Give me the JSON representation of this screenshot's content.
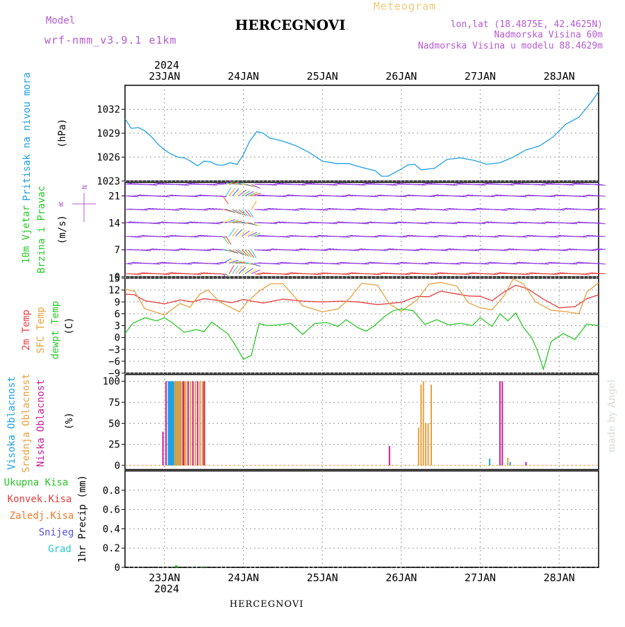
{
  "header": {
    "model_label": "Model",
    "model_name": "wrf-nmm_v3.9.1 e1km",
    "title": "HERCEGNOVI",
    "meteogram_label": "Meteogram",
    "lonlat": "lon,lat (18.4875E, 42.4625N)",
    "elevation": "Nadmorska Visina 60m",
    "model_elevation": "Nadmorska Visina u modelu 88.4629m"
  },
  "footer": {
    "station": "HERCEGNOVI",
    "watermark": "made by Angel"
  },
  "time_axis": {
    "year": "2024",
    "labels": [
      "23JAN",
      "24JAN",
      "25JAN",
      "26JAN",
      "27JAN",
      "28JAN"
    ],
    "start_day": 22.5,
    "end_day": 28.5
  },
  "colors": {
    "pressure": "#1ea0e6",
    "temp2m": "#e63c3c",
    "sfc_temp": "#e6a03c",
    "dewpt": "#28c828",
    "wind": "#8a2be2",
    "high_cloud": "#1ea0e6",
    "mid_cloud": "#e6a03c",
    "low_cloud": "#c81e96"
  },
  "chart_data": [
    {
      "type": "line",
      "name": "pressure",
      "ylabel_1": "Pritisak na nivou mora",
      "ylabel_2": "(hPa)",
      "ylim": [
        1023,
        1035
      ],
      "yticks": [
        "1023",
        "1026",
        "1029",
        "1032"
      ],
      "x": [
        22.5,
        22.58,
        22.67,
        22.75,
        22.83,
        22.92,
        23.0,
        23.08,
        23.17,
        23.25,
        23.33,
        23.42,
        23.5,
        23.58,
        23.67,
        23.75,
        23.83,
        23.92,
        24.0,
        24.08,
        24.17,
        24.25,
        24.33,
        24.5,
        24.67,
        24.83,
        25.0,
        25.17,
        25.33,
        25.5,
        25.67,
        25.75,
        25.83,
        26.0,
        26.08,
        26.17,
        26.25,
        26.42,
        26.58,
        26.75,
        26.92,
        27.08,
        27.25,
        27.42,
        27.58,
        27.75,
        27.92,
        28.08,
        28.25,
        28.4,
        28.5
      ],
      "y": [
        1030.8,
        1029.6,
        1029.7,
        1029.3,
        1028.6,
        1027.6,
        1026.9,
        1026.4,
        1026.0,
        1025.9,
        1025.5,
        1024.9,
        1025.5,
        1025.4,
        1025.0,
        1025.0,
        1025.3,
        1025.1,
        1026.3,
        1028.0,
        1029.2,
        1029.0,
        1028.4,
        1028.0,
        1027.4,
        1026.6,
        1025.5,
        1025.2,
        1025.2,
        1024.7,
        1024.3,
        1023.6,
        1023.6,
        1024.5,
        1025.0,
        1025.1,
        1024.4,
        1024.6,
        1025.7,
        1025.9,
        1025.6,
        1025.1,
        1025.3,
        1026.0,
        1026.9,
        1027.4,
        1028.5,
        1030.1,
        1031.0,
        1032.8,
        1034.2
      ]
    },
    {
      "type": "line",
      "name": "wind",
      "ylabel_1": "10m Vjetar",
      "ylabel_2": "Brzina i Pravac",
      "ylabel_3": "(m/s)",
      "ylim": [
        0,
        24.5
      ],
      "yticks": [
        "0",
        "7",
        "14",
        "21"
      ],
      "legend": "N",
      "legend_w": "W",
      "barb_levels": [
        0.8,
        3.5,
        7,
        10.5,
        14,
        17.5,
        21,
        24
      ]
    },
    {
      "type": "line",
      "name": "temperature",
      "ylabel_1": "2m Temp",
      "ylabel_2": "SFC Temp",
      "ylabel_3": "dewpt Temp",
      "ylabel_4": "(C)",
      "ylim": [
        -9,
        15
      ],
      "yticks": [
        "-9",
        "-6",
        "-3",
        "0",
        "3",
        "6",
        "9",
        "12",
        "15"
      ],
      "series": [
        {
          "name": "2m Temp",
          "x": [
            22.5,
            22.62,
            22.75,
            23.0,
            23.2,
            23.35,
            23.5,
            23.7,
            23.85,
            24.0,
            24.25,
            24.5,
            24.75,
            25.0,
            25.25,
            25.45,
            25.7,
            25.85,
            26.0,
            26.2,
            26.35,
            26.5,
            26.7,
            26.85,
            27.0,
            27.15,
            27.3,
            27.45,
            27.6,
            27.8,
            28.0,
            28.2,
            28.35,
            28.5
          ],
          "y": [
            11.0,
            10.8,
            9.3,
            8.5,
            9.5,
            9.0,
            9.8,
            9.3,
            8.8,
            9.6,
            8.7,
            9.7,
            9.2,
            9.0,
            9.2,
            9.0,
            8.3,
            8.6,
            8.9,
            10.4,
            10.3,
            11.7,
            11.0,
            10.5,
            10.4,
            9.3,
            11.5,
            13.2,
            12.3,
            9.7,
            7.5,
            7.8,
            9.8,
            10.8
          ]
        },
        {
          "name": "SFC Temp",
          "x": [
            22.5,
            22.62,
            22.75,
            23.0,
            23.2,
            23.32,
            23.45,
            23.55,
            23.7,
            23.85,
            23.95,
            24.05,
            24.2,
            24.35,
            24.5,
            24.75,
            25.0,
            25.2,
            25.35,
            25.5,
            25.7,
            25.85,
            26.0,
            26.2,
            26.35,
            26.5,
            26.7,
            26.85,
            27.0,
            27.15,
            27.3,
            27.42,
            27.55,
            27.7,
            27.9,
            28.1,
            28.25,
            28.35,
            28.5
          ],
          "y": [
            12.2,
            11.7,
            7.3,
            5.7,
            8.6,
            7.6,
            11.0,
            12.0,
            9.0,
            7.5,
            6.5,
            9.0,
            11.7,
            13.6,
            13.6,
            8.0,
            6.5,
            7.2,
            10.0,
            13.7,
            13.2,
            8.5,
            6.6,
            9.5,
            13.5,
            13.9,
            13.0,
            8.8,
            7.5,
            7.0,
            10.5,
            14.8,
            13.5,
            9.0,
            6.9,
            6.5,
            6.0,
            11.5,
            13.8
          ]
        },
        {
          "name": "dewpt Temp",
          "x": [
            22.5,
            22.6,
            22.75,
            22.9,
            23.0,
            23.1,
            23.25,
            23.4,
            23.5,
            23.6,
            23.7,
            23.8,
            23.9,
            24.0,
            24.1,
            24.2,
            24.3,
            24.45,
            24.6,
            24.75,
            24.9,
            25.05,
            25.2,
            25.3,
            25.45,
            25.55,
            25.65,
            25.8,
            25.9,
            26.0,
            26.15,
            26.3,
            26.45,
            26.6,
            26.75,
            26.9,
            27.0,
            27.15,
            27.25,
            27.35,
            27.45,
            27.55,
            27.65,
            27.72,
            27.8,
            27.9,
            28.05,
            28.2,
            28.35,
            28.5
          ],
          "y": [
            1.0,
            3.6,
            5.0,
            4.2,
            5.0,
            3.7,
            1.3,
            2.0,
            1.5,
            3.9,
            2.4,
            1.0,
            -2.0,
            -5.5,
            -4.5,
            3.5,
            3.0,
            3.2,
            3.6,
            0.8,
            3.5,
            3.8,
            2.8,
            4.5,
            2.5,
            1.6,
            2.8,
            5.5,
            6.8,
            7.2,
            6.8,
            3.3,
            4.5,
            3.2,
            3.6,
            3.0,
            5.0,
            2.8,
            6.0,
            4.2,
            6.2,
            2.5,
            0.0,
            -3.0,
            -8.0,
            -1.0,
            1.0,
            -0.5,
            3.4,
            3.0
          ]
        }
      ]
    },
    {
      "type": "bar",
      "name": "cloudiness",
      "ylabel_1": "Visoka Oblacnost",
      "ylabel_2": "Srednja Oblacnost",
      "ylabel_3": "Niska Oblacnost",
      "ylabel_4": "(%)",
      "ylim": [
        -5,
        108
      ],
      "yticks": [
        "0",
        "25",
        "50",
        "75",
        "100"
      ],
      "series": [
        {
          "name": "Visoka Oblacnost",
          "x": [
            23.05,
            23.06,
            23.07,
            23.08,
            23.09,
            23.1,
            23.11,
            23.12,
            23.14,
            23.16,
            23.18,
            23.2,
            27.12,
            27.38
          ],
          "values": [
            100,
            100,
            100,
            100,
            100,
            100,
            100,
            100,
            100,
            100,
            100,
            100,
            8,
            4
          ]
        },
        {
          "name": "Srednja Oblacnost",
          "x": [
            23.13,
            23.15,
            23.17,
            23.19,
            23.21,
            23.23,
            23.25,
            23.27,
            23.3,
            23.33,
            23.36,
            23.39,
            23.42,
            23.45,
            23.48,
            23.51,
            26.22,
            26.25,
            26.28,
            26.31,
            26.34,
            26.38,
            27.35
          ],
          "values": [
            100,
            100,
            100,
            100,
            100,
            100,
            100,
            100,
            100,
            100,
            100,
            100,
            100,
            100,
            100,
            100,
            45,
            96,
            100,
            50,
            50,
            96,
            9
          ]
        },
        {
          "name": "Niska Oblacnost",
          "x": [
            22.98,
            23.02,
            23.24,
            23.3,
            23.36,
            23.42,
            23.5,
            25.85,
            27.25,
            27.28,
            27.58
          ],
          "values": [
            40,
            100,
            100,
            100,
            100,
            100,
            100,
            23,
            100,
            100,
            4
          ]
        }
      ]
    },
    {
      "type": "bar",
      "name": "precipitation",
      "ylabel": "1hr Precip (mm)",
      "ylim": [
        0,
        1.0
      ],
      "yticks": [
        "0",
        "0.2",
        "0.4",
        "0.6",
        "0.8"
      ],
      "legend": [
        "Ukupna Kisa",
        "Konvek.Kisa",
        "Zaledj.Kisa",
        "Snijeg",
        "Grad"
      ],
      "legend_colors": [
        "#28c828",
        "#e63c3c",
        "#f07828",
        "#5050e6",
        "#28c8c8"
      ],
      "x": [
        23.15,
        23.5
      ],
      "values": [
        0.02,
        0.01
      ]
    }
  ]
}
